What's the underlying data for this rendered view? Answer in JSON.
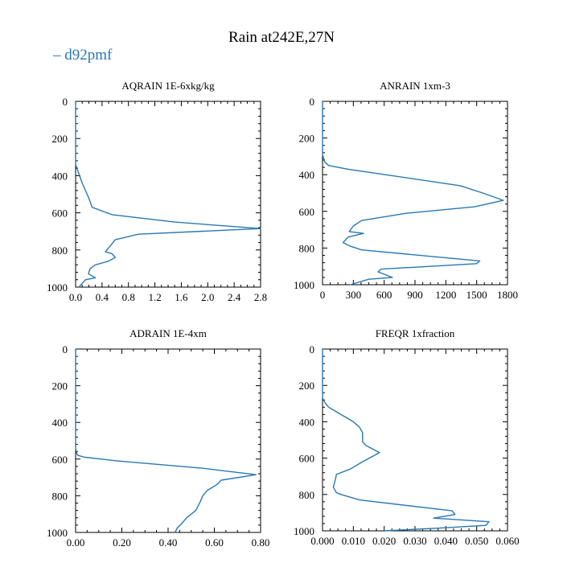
{
  "figure": {
    "title": "Rain at242E,27N",
    "legend_label": "d92pmf",
    "line_color": "#2878b4"
  },
  "chart_data": [
    {
      "type": "line",
      "title": "AQRAIN  1E-6xkg/kg",
      "xlabel": "",
      "ylabel": "",
      "xlim": [
        0,
        2.8
      ],
      "ylim": [
        1000,
        0
      ],
      "xticks": [
        0,
        0.4,
        0.8,
        1.2,
        1.6,
        2.0,
        2.4,
        2.8
      ],
      "xtick_labels": [
        "0.0",
        "0.4",
        "0.8",
        "1.2",
        "1.6",
        "2.0",
        "2.4",
        "2.8"
      ],
      "yticks": [
        0,
        200,
        400,
        600,
        800,
        1000
      ],
      "ytick_labels": [
        "0",
        "200",
        "400",
        "600",
        "800",
        "1000"
      ],
      "series": [
        {
          "name": "d92pmf",
          "x": [
            0.0,
            0.0,
            0.05,
            0.1,
            0.15,
            0.2,
            0.25,
            0.55,
            1.5,
            2.8,
            0.95,
            0.6,
            0.52,
            0.45,
            0.55,
            0.6,
            0.5,
            0.3,
            0.22,
            0.2,
            0.2,
            0.3,
            0.15,
            0.05
          ],
          "y": [
            0,
            340,
            390,
            440,
            480,
            520,
            570,
            610,
            650,
            685,
            715,
            745,
            780,
            810,
            820,
            840,
            860,
            880,
            900,
            920,
            930,
            950,
            960,
            1000
          ]
        }
      ]
    },
    {
      "type": "line",
      "title": "ANRAIN  1xm-3",
      "xlabel": "",
      "ylabel": "",
      "xlim": [
        0,
        1800
      ],
      "ylim": [
        1000,
        0
      ],
      "xticks": [
        0,
        300,
        600,
        900,
        1200,
        1500,
        1800
      ],
      "xtick_labels": [
        "0",
        "300",
        "600",
        "900",
        "1200",
        "1500",
        "1800"
      ],
      "yticks": [
        0,
        200,
        400,
        600,
        800,
        1000
      ],
      "ytick_labels": [
        "0",
        "200",
        "400",
        "600",
        "800",
        "1000"
      ],
      "series": [
        {
          "name": "d92pmf",
          "x": [
            0,
            0,
            20,
            60,
            250,
            1340,
            1560,
            1760,
            1480,
            820,
            380,
            300,
            260,
            400,
            250,
            200,
            270,
            380,
            1530,
            1500,
            570,
            540,
            680,
            450,
            270
          ],
          "y": [
            0,
            290,
            330,
            350,
            370,
            460,
            500,
            540,
            575,
            610,
            650,
            680,
            710,
            720,
            740,
            770,
            790,
            810,
            870,
            885,
            915,
            930,
            960,
            970,
            1000
          ]
        }
      ]
    },
    {
      "type": "line",
      "title": "ADRAIN  1E-4xm",
      "xlabel": "",
      "ylabel": "",
      "xlim": [
        0,
        0.8
      ],
      "ylim": [
        1000,
        0
      ],
      "xticks": [
        0,
        0.2,
        0.4,
        0.6,
        0.8
      ],
      "xtick_labels": [
        "0.00",
        "0.20",
        "0.40",
        "0.60",
        "0.80"
      ],
      "yticks": [
        0,
        200,
        400,
        600,
        800,
        1000
      ],
      "ytick_labels": [
        "0",
        "200",
        "400",
        "600",
        "800",
        "1000"
      ],
      "series": [
        {
          "name": "d92pmf",
          "x": [
            0.0,
            0.0,
            0.005,
            0.01,
            0.04,
            0.18,
            0.55,
            0.78,
            0.63,
            0.61,
            0.57,
            0.55,
            0.54,
            0.52,
            0.48,
            0.46,
            0.44,
            0.43
          ],
          "y": [
            0,
            540,
            570,
            580,
            590,
            610,
            650,
            685,
            715,
            740,
            770,
            800,
            830,
            880,
            920,
            950,
            975,
            1000
          ]
        }
      ]
    },
    {
      "type": "line",
      "title": "FREQR  1xfraction",
      "xlabel": "",
      "ylabel": "",
      "xlim": [
        0,
        0.06
      ],
      "ylim": [
        1000,
        0
      ],
      "xticks": [
        0,
        0.01,
        0.02,
        0.03,
        0.04,
        0.05,
        0.06
      ],
      "xtick_labels": [
        "0.000",
        "0.010",
        "0.020",
        "0.030",
        "0.040",
        "0.050",
        "0.060"
      ],
      "yticks": [
        0,
        200,
        400,
        600,
        800,
        1000
      ],
      "ytick_labels": [
        "0",
        "200",
        "400",
        "600",
        "800",
        "1000"
      ],
      "series": [
        {
          "name": "d92pmf",
          "x": [
            0.0,
            0.0,
            0.001,
            0.002,
            0.005,
            0.01,
            0.012,
            0.013,
            0.013,
            0.014,
            0.0185,
            0.013,
            0.009,
            0.0045,
            0.004,
            0.0035,
            0.0045,
            0.006,
            0.012,
            0.042,
            0.043,
            0.036,
            0.054,
            0.053,
            0.038,
            0.02
          ],
          "y": [
            0,
            270,
            300,
            320,
            350,
            400,
            430,
            460,
            510,
            530,
            570,
            620,
            660,
            690,
            730,
            760,
            790,
            800,
            830,
            890,
            910,
            930,
            950,
            970,
            985,
            1000
          ]
        }
      ]
    }
  ]
}
